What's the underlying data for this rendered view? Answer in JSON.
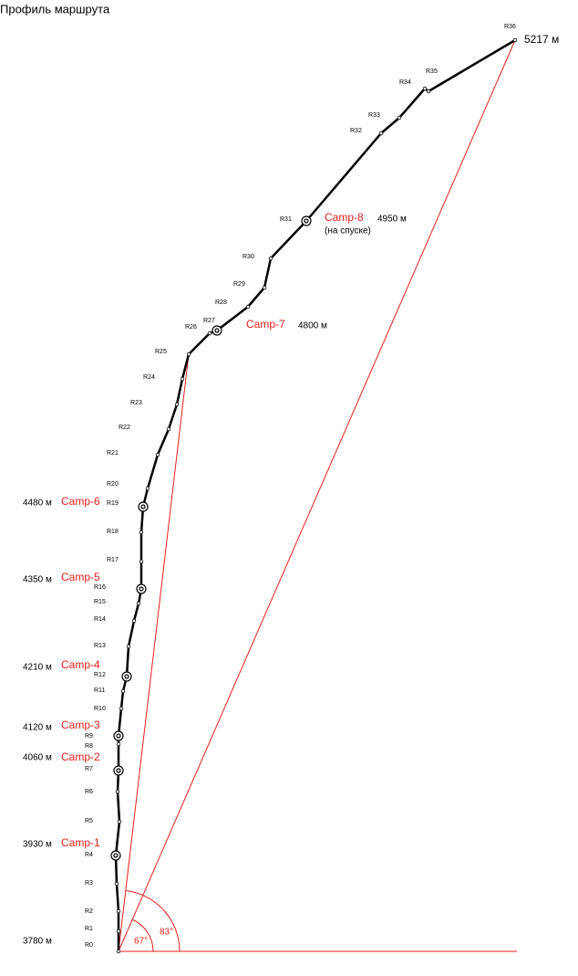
{
  "title": "Профиль маршрута",
  "points": [
    "R0",
    "R1",
    "R2",
    "R3",
    "R4",
    "R5",
    "R6",
    "R7",
    "R8",
    "R9",
    "R10",
    "R11",
    "R12",
    "R13",
    "R14",
    "R15",
    "R16",
    "R17",
    "R18",
    "R19",
    "R20",
    "R21",
    "R22",
    "R23",
    "R24",
    "R25",
    "R26",
    "R27",
    "R28",
    "R29",
    "R30",
    "R31",
    "R32",
    "R33",
    "R34",
    "R35",
    "R36"
  ],
  "base_altitude": "3780 м",
  "summit_altitude": "5217 м",
  "camps": [
    {
      "name": "Camp-1",
      "altitude": "3930 м"
    },
    {
      "name": "Camp-2",
      "altitude": "4060 м"
    },
    {
      "name": "Camp-3",
      "altitude": "4120 м"
    },
    {
      "name": "Camp-4",
      "altitude": "4210 м"
    },
    {
      "name": "Camp-5",
      "altitude": "4350 м"
    },
    {
      "name": "Camp-6",
      "altitude": "4480 м"
    },
    {
      "name": "Camp-7",
      "altitude": "4800 м"
    },
    {
      "name": "Camp-8",
      "altitude": "4950 м",
      "note": "(на спуске)"
    }
  ],
  "angles": [
    "67°",
    "83°"
  ]
}
